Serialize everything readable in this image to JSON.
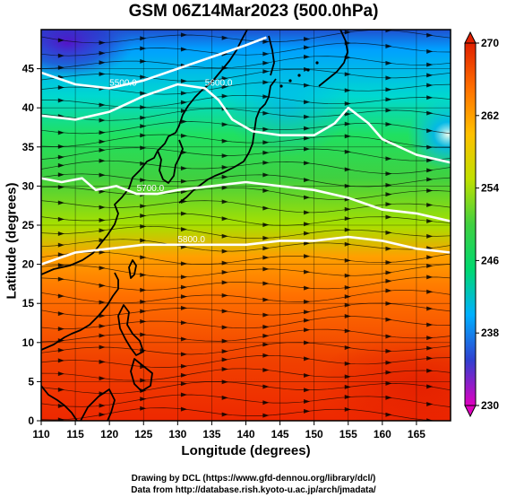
{
  "title": "GSM 06Z14Mar2023 (500.0hPa)",
  "xlabel": "Longitude (degrees)",
  "ylabel": "Latitude  (degrees)",
  "credits": [
    "Drawing by DCL (https://www.gfd-dennou.org/library/dcl/)",
    "Data from http://database.rish.kyoto-u.ac.jp/arch/jmadata/"
  ],
  "chart_data": {
    "type": "heatmap",
    "x_range": [
      110,
      170
    ],
    "y_range": [
      0,
      50
    ],
    "x_ticks": [
      110,
      115,
      120,
      125,
      130,
      135,
      140,
      145,
      150,
      155,
      160,
      165
    ],
    "y_ticks": [
      0,
      5,
      10,
      15,
      20,
      25,
      30,
      35,
      40,
      45
    ],
    "colorbar": {
      "min": 230,
      "max": 270,
      "ticks": [
        270,
        262,
        254,
        246,
        238,
        230
      ],
      "colors": [
        "#e000c0",
        "#3040d0",
        "#00b0ff",
        "#00d870",
        "#40d040",
        "#c0e000",
        "#ffc000",
        "#ff7000",
        "#e02000"
      ]
    },
    "contours": [
      {
        "label": "5500.0",
        "points": [
          [
            110,
            44.5
          ],
          [
            115,
            43
          ],
          [
            120,
            42.5
          ],
          [
            125,
            43.5
          ],
          [
            130,
            45
          ],
          [
            135,
            46.5
          ],
          [
            140,
            48
          ],
          [
            143,
            49
          ]
        ]
      },
      {
        "label": "5600.0",
        "points": [
          [
            110,
            39
          ],
          [
            115,
            38.5
          ],
          [
            120,
            39.5
          ],
          [
            125,
            41.5
          ],
          [
            130,
            43
          ],
          [
            134,
            42.5
          ],
          [
            136,
            41
          ],
          [
            138,
            38.5
          ],
          [
            141,
            37
          ],
          [
            145,
            36.5
          ],
          [
            150,
            36.5
          ],
          [
            153,
            38
          ],
          [
            155,
            40
          ],
          [
            158,
            38
          ],
          [
            160,
            36
          ],
          [
            165,
            34
          ],
          [
            170,
            33
          ]
        ]
      },
      {
        "label": "5700.0",
        "points": [
          [
            110,
            31
          ],
          [
            113,
            30.5
          ],
          [
            116,
            31
          ],
          [
            118,
            29.5
          ],
          [
            121,
            30
          ],
          [
            124,
            29
          ],
          [
            127,
            29
          ],
          [
            130,
            29.5
          ],
          [
            135,
            30
          ],
          [
            140,
            30.5
          ],
          [
            145,
            30
          ],
          [
            150,
            29.5
          ],
          [
            155,
            28.5
          ],
          [
            160,
            27
          ],
          [
            165,
            26.5
          ],
          [
            170,
            25.5
          ]
        ]
      },
      {
        "label": "5800.0",
        "points": [
          [
            110,
            20
          ],
          [
            115,
            21.5
          ],
          [
            120,
            22
          ],
          [
            125,
            22.5
          ],
          [
            130,
            22.5
          ],
          [
            135,
            22.5
          ],
          [
            140,
            22.5
          ],
          [
            145,
            23
          ],
          [
            150,
            23
          ],
          [
            155,
            23.5
          ],
          [
            160,
            23
          ],
          [
            165,
            22
          ],
          [
            170,
            21.5
          ]
        ]
      }
    ]
  }
}
